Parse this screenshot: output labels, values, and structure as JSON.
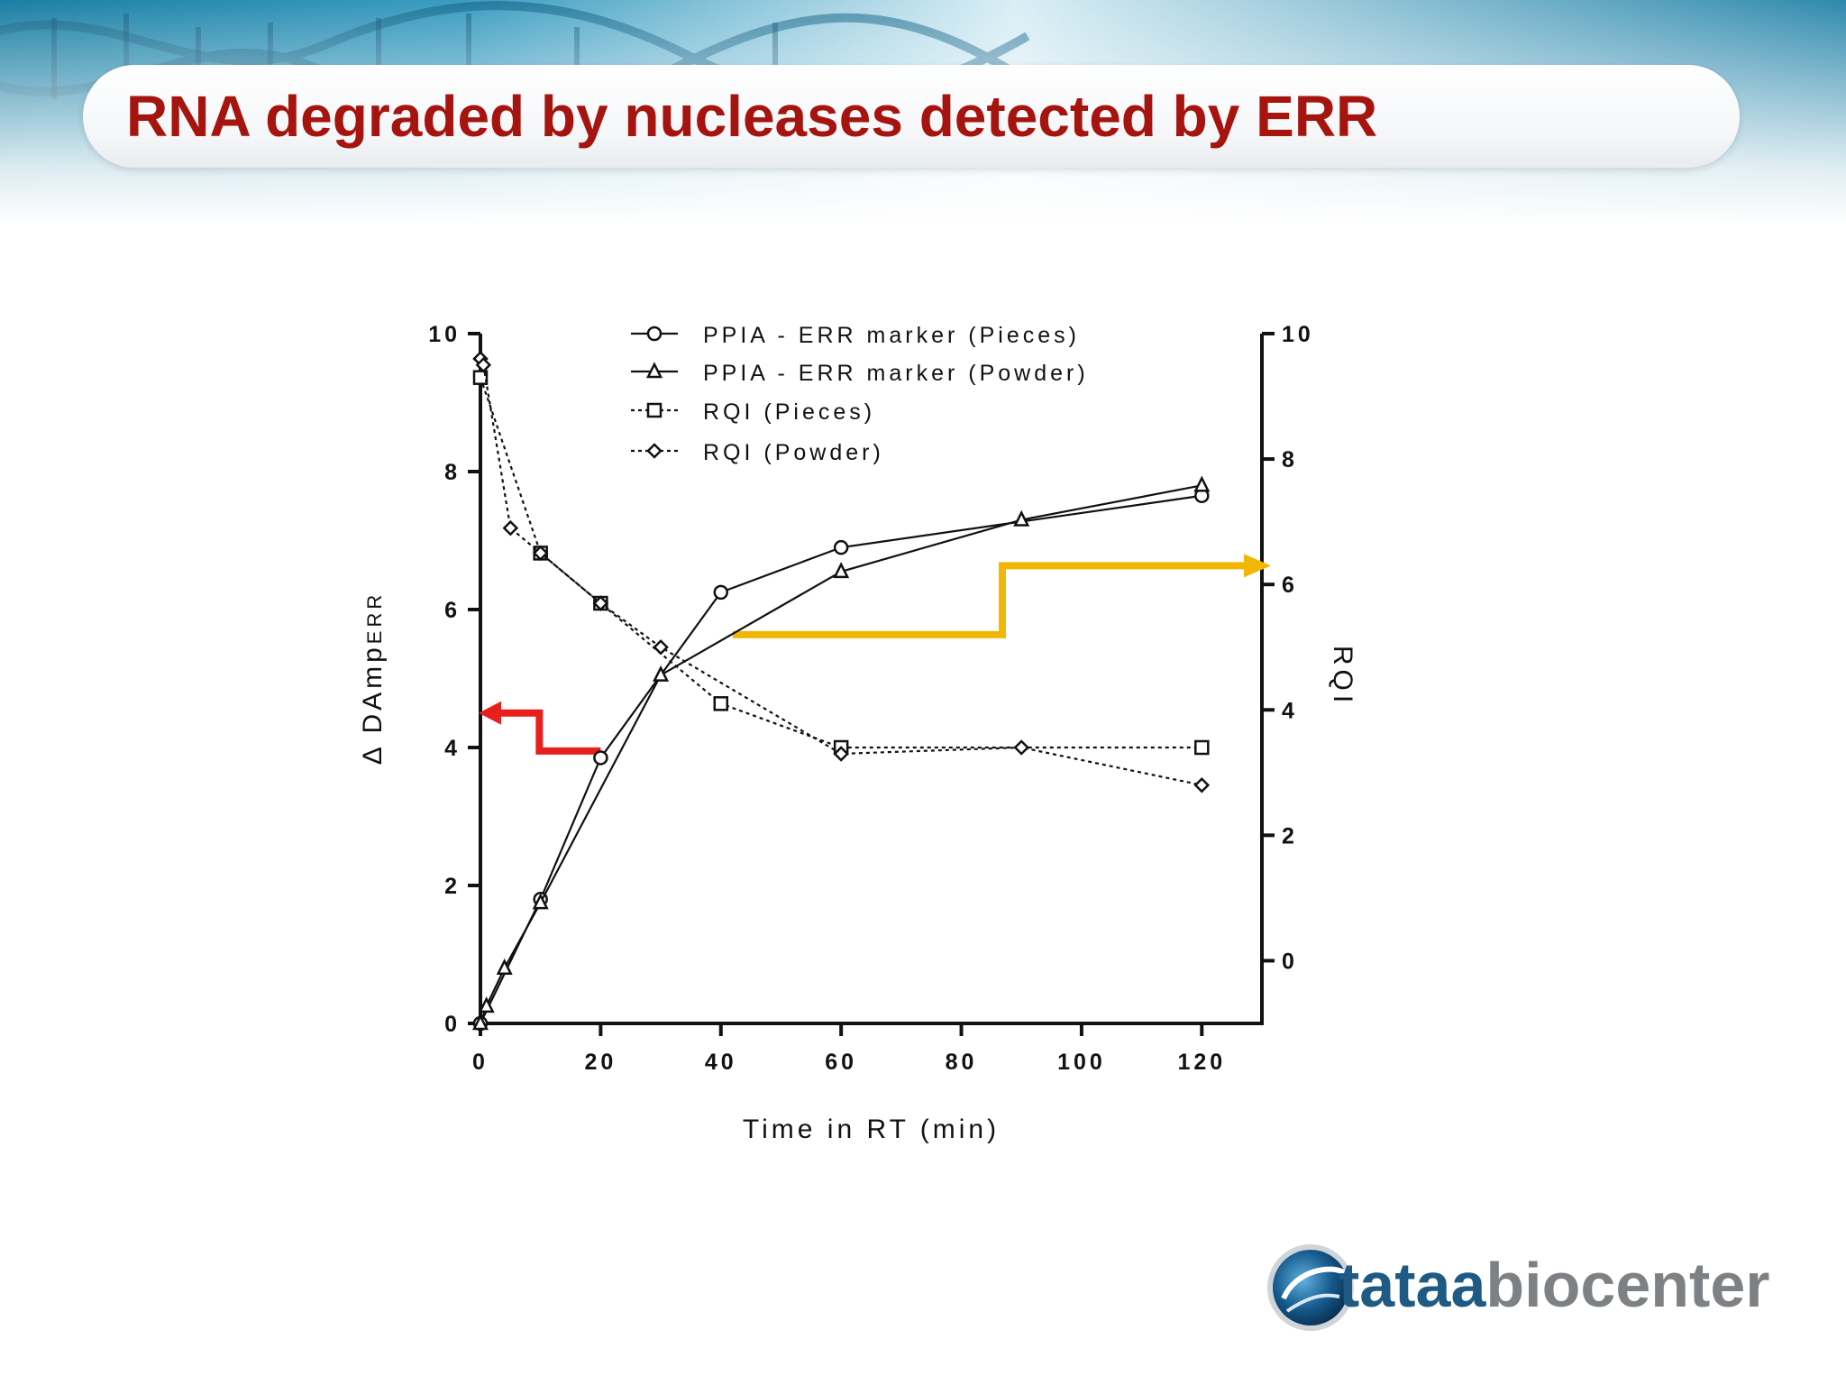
{
  "slide": {
    "title": "RNA degraded by nucleases detected by ERR"
  },
  "logo": {
    "brand_dark": "tataa",
    "brand_light": "biocenter",
    "colors": {
      "dark": "#1e5a84",
      "light": "#7d8184"
    }
  },
  "colors": {
    "title": "#a5140f",
    "red_arrow": "#e8201c",
    "yellow_arrow": "#f2b705",
    "series_line": "#111111"
  },
  "chart_data": {
    "type": "line",
    "title": "",
    "xlabel": "Time in RT (min)",
    "ylabel_left": "Δ DAmp",
    "ylabel_left_subscript": "ERR",
    "ylabel_right": "RQI",
    "xlim": [
      0,
      130
    ],
    "ylim_left": [
      0,
      10
    ],
    "ylim_right": [
      -1,
      10
    ],
    "x_ticks": [
      "0",
      "20",
      "40",
      "60",
      "80",
      "100",
      "120"
    ],
    "y_left_ticks": [
      "0",
      "2",
      "4",
      "6",
      "8",
      "10"
    ],
    "y_right_ticks": [
      "0",
      "2",
      "4",
      "6",
      "8",
      "10"
    ],
    "legend_position": "top-center",
    "series": [
      {
        "name": "PPIA - ERR marker (Pieces)",
        "axis": "left",
        "marker": "circle",
        "line": "solid",
        "x": [
          0,
          10,
          20,
          40,
          60,
          120
        ],
        "y": [
          0.0,
          1.8,
          3.85,
          6.25,
          6.9,
          7.65
        ]
      },
      {
        "name": "PPIA - ERR marker (Powder)",
        "axis": "left",
        "marker": "triangle",
        "line": "solid",
        "x": [
          0,
          1,
          4,
          10,
          30,
          60,
          90,
          120
        ],
        "y": [
          0.0,
          0.25,
          0.8,
          1.75,
          5.05,
          6.55,
          7.3,
          7.8
        ]
      },
      {
        "name": "RQI (Pieces)",
        "axis": "right",
        "marker": "square",
        "line": "dotted",
        "x": [
          0,
          10,
          20,
          40,
          60,
          120
        ],
        "y": [
          9.3,
          6.5,
          5.7,
          4.1,
          3.4,
          3.4
        ]
      },
      {
        "name": "RQI (Powder)",
        "axis": "right",
        "marker": "diamond",
        "line": "dotted",
        "x": [
          0,
          0.5,
          5,
          10,
          20,
          30,
          60,
          90,
          120
        ],
        "y": [
          9.6,
          9.5,
          6.9,
          6.5,
          5.7,
          5.0,
          3.3,
          3.4,
          2.8
        ]
      }
    ],
    "annotations": [
      {
        "type": "arrow",
        "color": "red",
        "points_to": "left-axis"
      },
      {
        "type": "arrow",
        "color": "yellow",
        "points_to": "right-axis"
      }
    ]
  }
}
